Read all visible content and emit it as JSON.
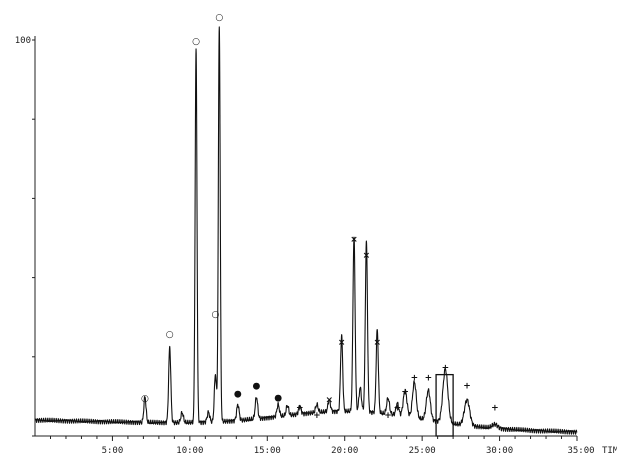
{
  "chart_data": {
    "type": "line",
    "title": "",
    "xlabel": "",
    "ylabel": "",
    "xlim": [
      0,
      35
    ],
    "ylim": [
      0,
      100
    ],
    "x_unit_suffix": "TIME",
    "x_ticks": [
      {
        "value": 5,
        "label": "5:00"
      },
      {
        "value": 10,
        "label": "10:00"
      },
      {
        "value": 15,
        "label": "15:00"
      },
      {
        "value": 20,
        "label": "20:00"
      },
      {
        "value": 25,
        "label": "25:00"
      },
      {
        "value": 30,
        "label": "30:00"
      },
      {
        "value": 35,
        "label": "35:00"
      }
    ],
    "y_ticks": [
      {
        "value": 100,
        "label": "100"
      }
    ],
    "line_color": "#111111",
    "highlight_color": "#111111",
    "baseline": {
      "start": 4.0,
      "end": 1.0
    },
    "hump": {
      "center": 20.5,
      "width": 4.5,
      "amplitude": 4
    },
    "peaks": [
      {
        "rt": 7.1,
        "h": 6.5,
        "w": 0.07,
        "marker": "○",
        "marker_h": 9.8
      },
      {
        "rt": 8.7,
        "h": 19,
        "w": 0.07,
        "marker": "○",
        "marker_h": 26
      },
      {
        "rt": 10.4,
        "h": 94,
        "w": 0.06,
        "marker": "○",
        "marker_h": 100
      },
      {
        "rt": 11.9,
        "h": 100,
        "w": 0.06,
        "marker": "○",
        "marker_h": 106
      },
      {
        "rt": 11.65,
        "h": 12,
        "w": 0.07,
        "marker": "○",
        "marker_h": 31
      },
      {
        "rt": 9.5,
        "h": 2.5,
        "w": 0.08
      },
      {
        "rt": 11.2,
        "h": 2.5,
        "w": 0.08
      },
      {
        "rt": 13.1,
        "h": 4,
        "w": 0.08,
        "marker": "●",
        "marker_h": 11
      },
      {
        "rt": 14.3,
        "h": 5.5,
        "w": 0.08,
        "marker": "●",
        "marker_h": 13
      },
      {
        "rt": 15.7,
        "h": 3,
        "w": 0.08,
        "marker": "●",
        "marker_h": 10
      },
      {
        "rt": 16.3,
        "h": 2.5,
        "w": 0.08
      },
      {
        "rt": 17.1,
        "h": 2,
        "w": 0.08,
        "marker": "+",
        "marker_h": 7.5
      },
      {
        "rt": 18.2,
        "h": 2,
        "w": 0.08,
        "marker": "+",
        "marker_h": 5.5
      },
      {
        "rt": 19.0,
        "h": 3,
        "w": 0.08,
        "marker": "×",
        "marker_h": 9.5
      },
      {
        "rt": 19.8,
        "h": 19,
        "w": 0.07,
        "marker": "×",
        "marker_h": 24
      },
      {
        "rt": 20.6,
        "h": 44,
        "w": 0.07,
        "marker": "×",
        "marker_h": 50
      },
      {
        "rt": 21.0,
        "h": 6,
        "w": 0.08
      },
      {
        "rt": 21.4,
        "h": 43,
        "w": 0.07,
        "marker": "×",
        "marker_h": 46
      },
      {
        "rt": 22.1,
        "h": 21,
        "w": 0.07,
        "marker": "×",
        "marker_h": 24
      },
      {
        "rt": 22.8,
        "h": 4,
        "w": 0.09,
        "marker": "+",
        "marker_h": 5.5
      },
      {
        "rt": 23.4,
        "h": 3,
        "w": 0.09,
        "marker": "+",
        "marker_h": 7.5
      },
      {
        "rt": 23.9,
        "h": 6.5,
        "w": 0.12,
        "marker": "+",
        "marker_h": 11.5
      },
      {
        "rt": 24.5,
        "h": 9,
        "w": 0.12,
        "marker": "+",
        "marker_h": 15
      },
      {
        "rt": 25.4,
        "h": 7.5,
        "w": 0.13,
        "marker": "+",
        "marker_h": 15
      },
      {
        "rt": 26.5,
        "h": 13.5,
        "w": 0.16,
        "marker": "+",
        "marker_h": 17.5
      },
      {
        "rt": 27.9,
        "h": 6.5,
        "w": 0.17,
        "marker": "+",
        "marker_h": 13
      },
      {
        "rt": 29.7,
        "h": 1.0,
        "w": 0.18,
        "marker": "+",
        "marker_h": 7.5
      }
    ],
    "highlight_box": {
      "x0": 25.9,
      "x1": 27.0,
      "y0": 0,
      "y1": 15.5
    }
  }
}
